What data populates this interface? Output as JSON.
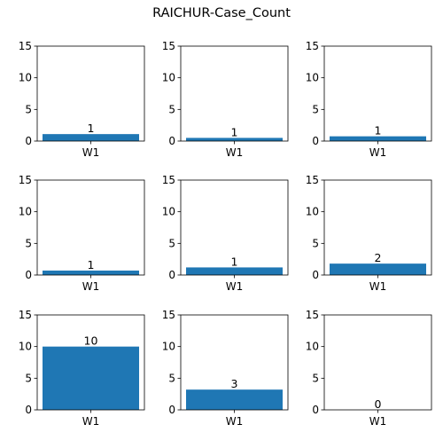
{
  "chart_data": {
    "type": "bar",
    "title": "RAICHUR-Case_Count",
    "layout": {
      "rows": 3,
      "cols": 3
    },
    "subplots": [
      {
        "categories": [
          "W1"
        ],
        "values": [
          1.1
        ],
        "label": "1",
        "ylim": [
          0,
          15
        ],
        "yticks": [
          0,
          5,
          10,
          15
        ]
      },
      {
        "categories": [
          "W1"
        ],
        "values": [
          0.5
        ],
        "label": "1",
        "ylim": [
          0,
          15
        ],
        "yticks": [
          0,
          5,
          10,
          15
        ]
      },
      {
        "categories": [
          "W1"
        ],
        "values": [
          0.75
        ],
        "label": "1",
        "ylim": [
          0,
          15
        ],
        "yticks": [
          0,
          5,
          10,
          15
        ]
      },
      {
        "categories": [
          "W1"
        ],
        "values": [
          0.7
        ],
        "label": "1",
        "ylim": [
          0,
          15
        ],
        "yticks": [
          0,
          5,
          10,
          15
        ]
      },
      {
        "categories": [
          "W1"
        ],
        "values": [
          1.2
        ],
        "label": "1",
        "ylim": [
          0,
          15
        ],
        "yticks": [
          0,
          5,
          10,
          15
        ]
      },
      {
        "categories": [
          "W1"
        ],
        "values": [
          1.8
        ],
        "label": "2",
        "ylim": [
          0,
          15
        ],
        "yticks": [
          0,
          5,
          10,
          15
        ]
      },
      {
        "categories": [
          "W1"
        ],
        "values": [
          10
        ],
        "label": "10",
        "ylim": [
          0,
          15
        ],
        "yticks": [
          0,
          5,
          10,
          15
        ]
      },
      {
        "categories": [
          "W1"
        ],
        "values": [
          3.2
        ],
        "label": "3",
        "ylim": [
          0,
          15
        ],
        "yticks": [
          0,
          5,
          10,
          15
        ]
      },
      {
        "categories": [
          "W1"
        ],
        "values": [
          0
        ],
        "label": "0",
        "ylim": [
          0,
          15
        ],
        "yticks": [
          0,
          5,
          10,
          15
        ]
      }
    ],
    "bar_color": "#1f77b4",
    "grid": false,
    "legend": "none"
  }
}
